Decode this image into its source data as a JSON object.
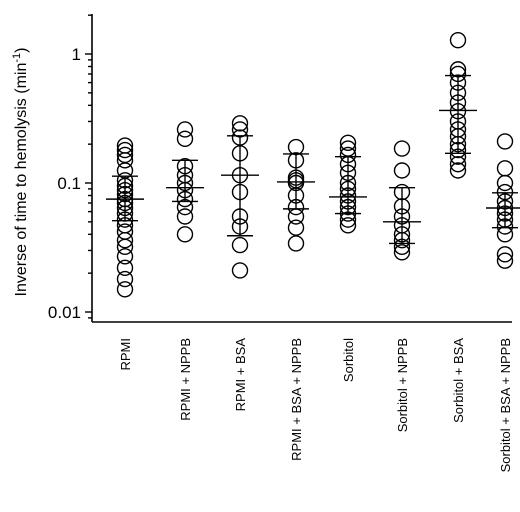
{
  "chart_data": {
    "type": "scatter",
    "scale": "log",
    "title": "",
    "ylabel": "Inverse of time to hemolysis (min",
    "ylabel_sup": "-1",
    "ylabel_close": ")",
    "ylim": [
      0.008,
      2.0
    ],
    "yticks": [
      {
        "value": 0.01,
        "label": "0.01"
      },
      {
        "value": 0.1,
        "label": "0.1"
      },
      {
        "value": 1,
        "label": "1"
      }
    ],
    "categories": [
      "RPMI",
      "RPMI + NPPB",
      "RPMI + BSA",
      "RPMI + BSA + NPPB",
      "Sorbitol",
      "Sorbitol + NPPB",
      "Sorbitol + BSA",
      "Sorbitol + BSA + NPPB"
    ],
    "groups": [
      {
        "points": [
          0.195,
          0.18,
          0.165,
          0.15,
          0.125,
          0.105,
          0.095,
          0.088,
          0.082,
          0.075,
          0.07,
          0.064,
          0.058,
          0.052,
          0.047,
          0.042,
          0.036,
          0.032,
          0.027,
          0.022,
          0.018,
          0.015
        ],
        "median": 0.075,
        "q1": 0.051,
        "q3": 0.113
      },
      {
        "points": [
          0.26,
          0.22,
          0.135,
          0.115,
          0.1,
          0.088,
          0.075,
          0.065,
          0.055,
          0.04
        ],
        "median": 0.092,
        "q1": 0.072,
        "q3": 0.15
      },
      {
        "points": [
          0.29,
          0.26,
          0.225,
          0.17,
          0.115,
          0.085,
          0.055,
          0.046,
          0.033,
          0.021
        ],
        "median": 0.115,
        "q1": 0.039,
        "q3": 0.232
      },
      {
        "points": [
          0.19,
          0.15,
          0.11,
          0.105,
          0.1,
          0.08,
          0.065,
          0.055,
          0.045,
          0.034
        ],
        "median": 0.102,
        "q1": 0.063,
        "q3": 0.168
      },
      {
        "points": [
          0.205,
          0.185,
          0.165,
          0.14,
          0.12,
          0.1,
          0.09,
          0.08,
          0.072,
          0.065,
          0.058,
          0.052,
          0.047
        ],
        "median": 0.078,
        "q1": 0.058,
        "q3": 0.16
      },
      {
        "points": [
          0.185,
          0.125,
          0.085,
          0.066,
          0.055,
          0.047,
          0.04,
          0.036,
          0.032,
          0.029
        ],
        "median": 0.05,
        "q1": 0.034,
        "q3": 0.092
      },
      {
        "points": [
          1.28,
          0.76,
          0.7,
          0.6,
          0.5,
          0.42,
          0.36,
          0.3,
          0.26,
          0.23,
          0.2,
          0.18,
          0.16,
          0.14,
          0.125
        ],
        "median": 0.365,
        "q1": 0.17,
        "q3": 0.68
      },
      {
        "points": [
          0.21,
          0.13,
          0.1,
          0.085,
          0.072,
          0.064,
          0.058,
          0.052,
          0.046,
          0.04,
          0.028,
          0.025
        ],
        "median": 0.064,
        "q1": 0.045,
        "q3": 0.084
      }
    ]
  }
}
